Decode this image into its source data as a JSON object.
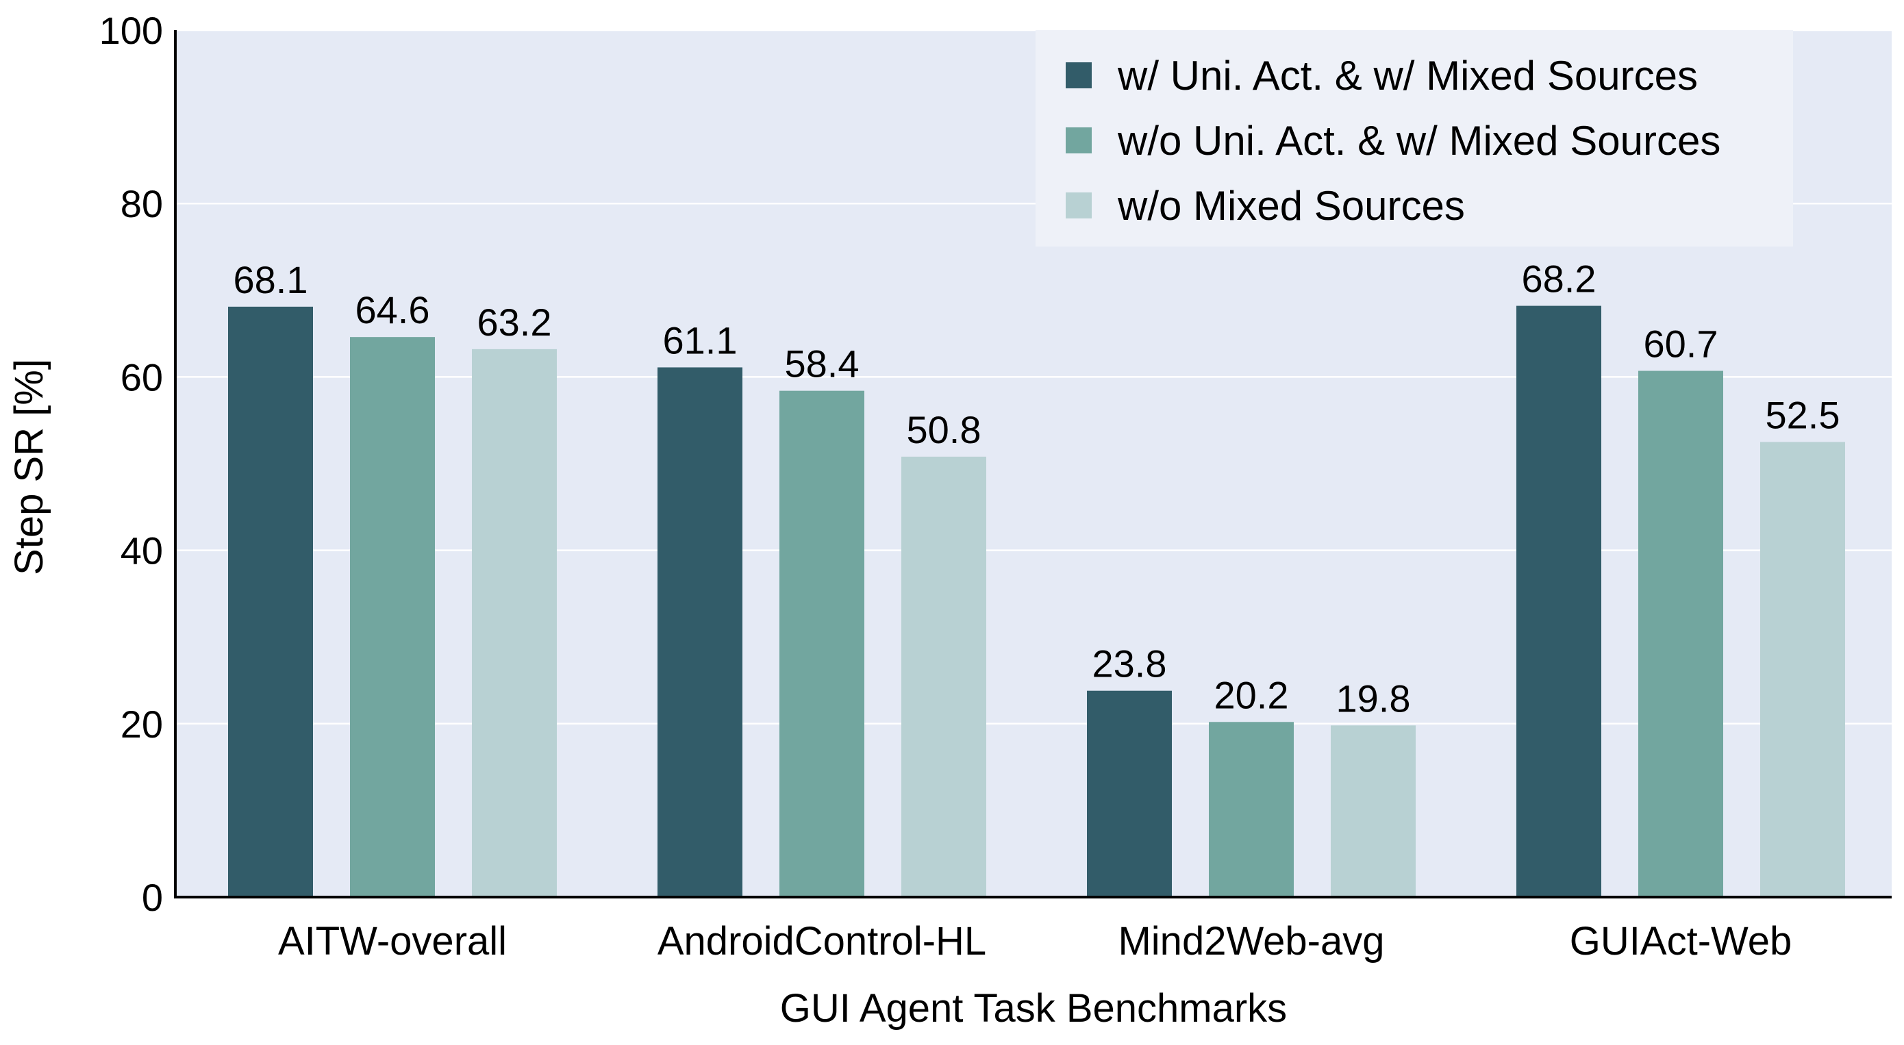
{
  "chart_data": {
    "type": "bar",
    "title": "",
    "xlabel": "GUI Agent Task Benchmarks",
    "ylabel": "Step SR [%]",
    "ylim": [
      0,
      100
    ],
    "yticks": [
      0,
      20,
      40,
      60,
      80,
      100
    ],
    "grid": "horizontal",
    "legend_position": "top-right",
    "categories": [
      "AITW-overall",
      "AndroidControl-HL",
      "Mind2Web-avg",
      "GUIAct-Web"
    ],
    "series": [
      {
        "name": "w/ Uni. Act. & w/ Mixed Sources",
        "values": [
          68.1,
          61.1,
          23.8,
          68.2
        ],
        "color": "#325c69"
      },
      {
        "name": "w/o Uni. Act. & w/ Mixed Sources",
        "values": [
          64.6,
          58.4,
          20.2,
          60.7
        ],
        "color": "#72a69f"
      },
      {
        "name": "w/o Mixed Sources",
        "values": [
          63.2,
          50.8,
          19.8,
          52.5
        ],
        "color": "#b8d1d3"
      }
    ],
    "background_color": "#e5eaf5",
    "legend_background": "#eef1f8"
  }
}
